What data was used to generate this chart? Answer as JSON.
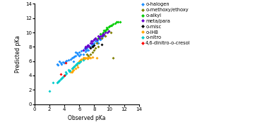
{
  "title": "",
  "xlabel": "Observed pKa",
  "ylabel": "Predicted pKa",
  "xlim": [
    0,
    14
  ],
  "ylim": [
    0,
    14
  ],
  "xticks": [
    0,
    2,
    4,
    6,
    8,
    10,
    12,
    14
  ],
  "yticks": [
    0,
    2,
    4,
    6,
    8,
    10,
    12,
    14
  ],
  "diagonal": false,
  "groups": [
    {
      "label": "o-halogen",
      "color": "#1E90FF",
      "marker": "D",
      "size": 4,
      "data": [
        [
          3.0,
          5.6
        ],
        [
          3.1,
          5.5
        ],
        [
          3.3,
          6.0
        ],
        [
          3.5,
          5.8
        ],
        [
          3.6,
          5.6
        ],
        [
          4.0,
          5.8
        ],
        [
          4.2,
          6.0
        ],
        [
          4.5,
          6.2
        ],
        [
          5.0,
          6.5
        ],
        [
          5.2,
          6.0
        ],
        [
          5.5,
          6.8
        ],
        [
          5.8,
          7.0
        ],
        [
          6.0,
          7.2
        ],
        [
          6.2,
          7.0
        ],
        [
          6.5,
          7.5
        ],
        [
          6.8,
          7.3
        ],
        [
          7.0,
          7.8
        ],
        [
          7.2,
          7.5
        ],
        [
          7.5,
          8.0
        ],
        [
          7.8,
          8.2
        ],
        [
          8.0,
          8.5
        ],
        [
          8.2,
          8.8
        ],
        [
          8.5,
          8.5
        ],
        [
          8.8,
          9.0
        ],
        [
          9.0,
          9.2
        ],
        [
          9.2,
          9.5
        ],
        [
          5.5,
          7.2
        ],
        [
          6.0,
          6.8
        ],
        [
          6.5,
          7.0
        ],
        [
          7.0,
          7.5
        ],
        [
          3.8,
          5.9
        ],
        [
          4.8,
          6.3
        ],
        [
          5.2,
          6.6
        ],
        [
          5.7,
          7.1
        ],
        [
          6.3,
          7.4
        ],
        [
          6.7,
          7.8
        ],
        [
          7.3,
          8.0
        ],
        [
          7.7,
          8.3
        ],
        [
          8.3,
          8.7
        ],
        [
          8.7,
          9.1
        ],
        [
          4.3,
          6.1
        ],
        [
          5.3,
          6.7
        ],
        [
          6.8,
          7.6
        ],
        [
          7.9,
          8.4
        ],
        [
          8.4,
          8.9
        ]
      ]
    },
    {
      "label": "o-methoxy/ethoxy",
      "color": "#808000",
      "marker": "D",
      "size": 4,
      "data": [
        [
          7.2,
          6.8
        ],
        [
          7.5,
          7.0
        ],
        [
          7.8,
          7.2
        ],
        [
          8.0,
          7.5
        ],
        [
          8.2,
          7.8
        ],
        [
          8.5,
          8.0
        ],
        [
          9.0,
          9.2
        ],
        [
          9.5,
          9.5
        ],
        [
          10.0,
          10.2
        ],
        [
          10.2,
          10.0
        ],
        [
          7.0,
          7.0
        ],
        [
          7.8,
          8.0
        ],
        [
          8.3,
          8.5
        ],
        [
          9.2,
          9.8
        ],
        [
          10.5,
          6.5
        ]
      ]
    },
    {
      "label": "o-alkyl",
      "color": "#00CC00",
      "marker": "D",
      "size": 4,
      "data": [
        [
          9.0,
          9.5
        ],
        [
          9.2,
          10.0
        ],
        [
          9.5,
          10.2
        ],
        [
          9.8,
          10.5
        ],
        [
          10.0,
          10.8
        ],
        [
          10.2,
          11.0
        ],
        [
          10.5,
          11.2
        ],
        [
          11.0,
          11.5
        ],
        [
          11.2,
          11.5
        ],
        [
          11.5,
          11.5
        ],
        [
          8.8,
          9.8
        ],
        [
          9.3,
          10.3
        ],
        [
          9.7,
          10.7
        ],
        [
          10.3,
          11.0
        ],
        [
          10.8,
          11.3
        ],
        [
          8.5,
          9.2
        ],
        [
          9.1,
          9.8
        ],
        [
          9.6,
          10.4
        ],
        [
          10.1,
          10.9
        ]
      ]
    },
    {
      "label": "meta/para",
      "color": "#6600CC",
      "marker": "D",
      "size": 4,
      "data": [
        [
          6.5,
          7.5
        ],
        [
          6.8,
          7.8
        ],
        [
          7.0,
          8.0
        ],
        [
          7.2,
          8.2
        ],
        [
          7.5,
          8.5
        ],
        [
          7.8,
          8.8
        ],
        [
          8.0,
          9.0
        ],
        [
          8.2,
          9.2
        ],
        [
          8.5,
          9.5
        ],
        [
          8.8,
          9.5
        ],
        [
          9.0,
          9.5
        ],
        [
          9.2,
          9.8
        ],
        [
          9.5,
          10.0
        ],
        [
          9.8,
          10.0
        ],
        [
          10.0,
          10.2
        ],
        [
          7.3,
          8.0
        ],
        [
          7.7,
          8.5
        ],
        [
          8.3,
          9.0
        ],
        [
          8.7,
          9.2
        ],
        [
          9.3,
          9.7
        ],
        [
          6.8,
          8.0
        ],
        [
          7.1,
          8.2
        ],
        [
          7.6,
          8.8
        ],
        [
          8.1,
          9.1
        ],
        [
          8.6,
          9.4
        ],
        [
          9.1,
          9.6
        ]
      ]
    },
    {
      "label": "o-misc",
      "color": "#000000",
      "marker": "D",
      "size": 4,
      "data": [
        [
          7.5,
          7.8
        ],
        [
          8.0,
          8.2
        ],
        [
          9.0,
          8.3
        ],
        [
          7.8,
          8.0
        ]
      ]
    },
    {
      "label": "o-IHB",
      "color": "#FFA500",
      "marker": "D",
      "size": 4,
      "data": [
        [
          5.0,
          4.5
        ],
        [
          5.2,
          4.8
        ],
        [
          5.5,
          5.0
        ],
        [
          5.8,
          5.2
        ],
        [
          6.0,
          6.0
        ],
        [
          6.2,
          6.2
        ],
        [
          6.5,
          6.5
        ],
        [
          6.8,
          6.5
        ],
        [
          7.0,
          6.5
        ],
        [
          7.2,
          6.5
        ],
        [
          7.5,
          6.5
        ],
        [
          5.3,
          5.3
        ],
        [
          5.7,
          5.5
        ],
        [
          6.1,
          6.1
        ],
        [
          6.4,
          6.3
        ],
        [
          6.7,
          6.4
        ],
        [
          7.1,
          6.4
        ],
        [
          4.8,
          4.5
        ],
        [
          5.1,
          4.7
        ],
        [
          5.9,
          5.8
        ],
        [
          6.3,
          6.3
        ],
        [
          6.6,
          6.5
        ],
        [
          7.3,
          6.6
        ],
        [
          7.8,
          6.6
        ],
        [
          8.3,
          6.5
        ]
      ]
    },
    {
      "label": "o-nitro",
      "color": "#00CCCC",
      "marker": "D",
      "size": 4,
      "data": [
        [
          2.0,
          1.8
        ],
        [
          3.0,
          3.0
        ],
        [
          3.2,
          3.2
        ],
        [
          3.5,
          3.5
        ],
        [
          3.8,
          3.8
        ],
        [
          4.0,
          4.0
        ],
        [
          4.2,
          4.5
        ],
        [
          4.5,
          4.8
        ],
        [
          5.0,
          5.0
        ],
        [
          5.2,
          5.2
        ],
        [
          5.5,
          5.5
        ],
        [
          5.8,
          5.8
        ],
        [
          3.3,
          3.3
        ],
        [
          3.7,
          3.7
        ],
        [
          4.3,
          4.3
        ],
        [
          4.7,
          4.7
        ],
        [
          5.3,
          5.3
        ],
        [
          5.7,
          5.7
        ],
        [
          2.5,
          3.0
        ],
        [
          3.1,
          3.1
        ],
        [
          3.6,
          3.6
        ],
        [
          4.1,
          4.1
        ],
        [
          4.6,
          4.6
        ],
        [
          5.1,
          5.1
        ],
        [
          5.6,
          5.6
        ],
        [
          6.0,
          5.8
        ],
        [
          6.2,
          6.0
        ],
        [
          6.5,
          6.2
        ]
      ]
    },
    {
      "label": "4,6-dinitro-o-cresol",
      "color": "#FF0000",
      "marker": "D",
      "size": 4,
      "data": [
        [
          3.5,
          4.2
        ],
        [
          4.0,
          4.0
        ],
        [
          4.2,
          5.8
        ]
      ]
    }
  ]
}
